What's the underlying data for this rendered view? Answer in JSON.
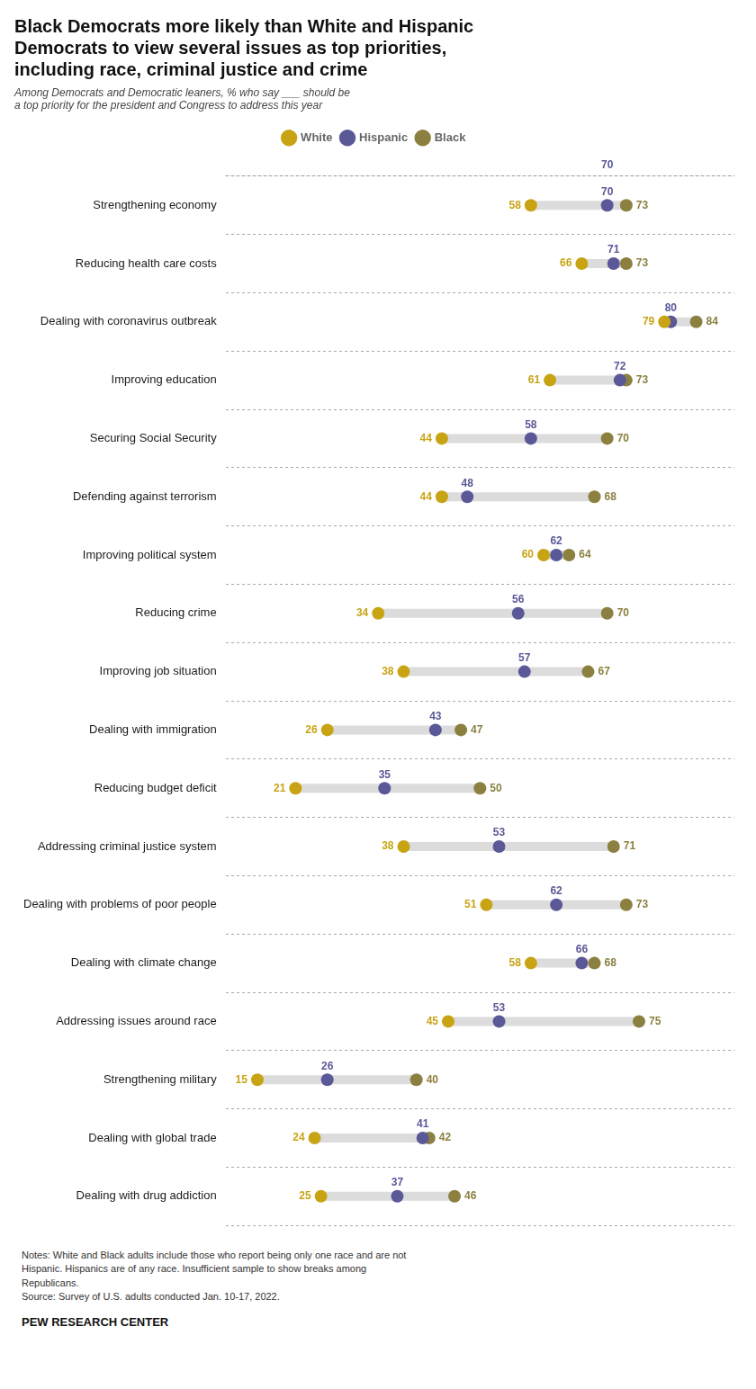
{
  "chart_data": {
    "type": "dot",
    "title": "Black Democrats more likely than White and Hispanic\nDemocrats to view several issues as top priorities,\nincluding race, criminal justice and crime",
    "subtitle": "Among Democrats and Democratic leaners, % who say ___ should be\na top priority for the president and Congress to address this year",
    "notes": "Notes: White and Black adults include those who report being only one race and are not\nHispanic. Hispanics are of any race. Insufficient sample to show breaks among\nRepublicans.\nSource: Survey of U.S. adults conducted Jan. 10-17, 2022.",
    "source": "PEW RESEARCH CENTER",
    "categories": [
      "Strengthening economy",
      "Reducing health care costs",
      "Dealing with coronavirus outbreak",
      "Improving education",
      "Securing Social Security",
      "Defending against terrorism",
      "Improving political system",
      "Reducing crime",
      "Improving job situation",
      "Dealing with immigration",
      "Reducing budget deficit",
      "Addressing criminal justice system",
      "Dealing with problems of poor people",
      "Dealing with climate change",
      "Addressing issues around race",
      "Strengthening military",
      "Dealing with global trade",
      "Dealing with drug addiction"
    ],
    "series": [
      {
        "name": "White",
        "color": "#C8A415",
        "values": [
          58,
          66,
          79,
          61,
          44,
          44,
          60,
          34,
          38,
          26,
          21,
          38,
          51,
          58,
          45,
          15,
          24,
          25
        ]
      },
      {
        "name": "Hispanic",
        "color": "#5A5897",
        "values": [
          70,
          71,
          80,
          72,
          58,
          48,
          62,
          56,
          57,
          43,
          35,
          53,
          62,
          66,
          53,
          26,
          41,
          37
        ]
      },
      {
        "name": "Black",
        "color": "#8B8040",
        "values": [
          73,
          73,
          84,
          73,
          70,
          68,
          64,
          70,
          67,
          47,
          50,
          71,
          73,
          68,
          75,
          40,
          42,
          46
        ]
      }
    ],
    "color": "#DCDCDC",
    "xlim": [
      10,
      90
    ],
    "tick_labels": "y",
    "data_labels": true,
    "grid": true,
    "legend": "top",
    "annotations": [
      {
        "text": "70",
        "x": 70,
        "series": "Hispanic"
      }
    ]
  }
}
